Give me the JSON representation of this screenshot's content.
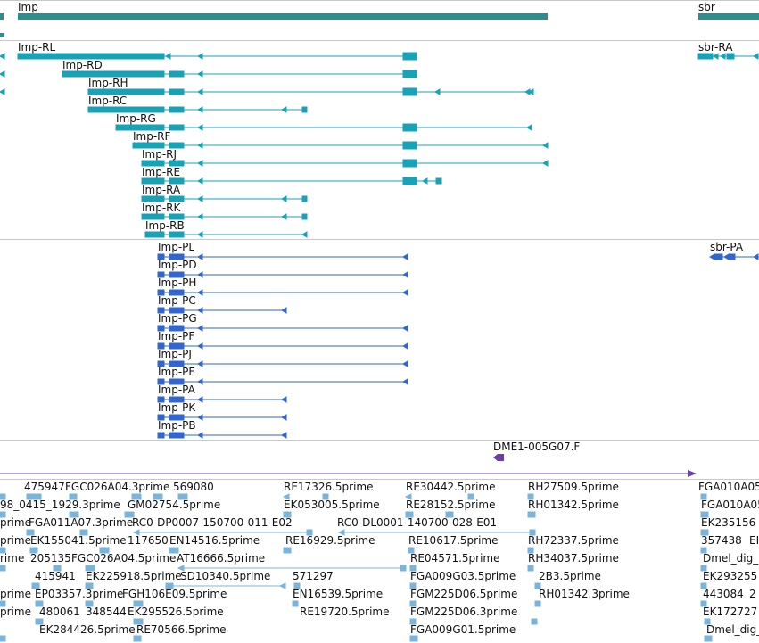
{
  "colors": {
    "gene": "#2a8f8f",
    "transcript": "#17a2b8",
    "protein": "#3366cc",
    "probe": "#6b3fa8",
    "clone": "#7bb3d9"
  },
  "gene_track": {
    "labels": [
      "Imp",
      "sbr"
    ]
  },
  "transcript_track": {
    "labels": [
      "Imp-RL",
      "Imp-RD",
      "Imp-RH",
      "Imp-RC",
      "Imp-RG",
      "Imp-RF",
      "Imp-RJ",
      "Imp-RE",
      "Imp-RA",
      "Imp-RK",
      "Imp-RB",
      "sbr-RA"
    ]
  },
  "protein_track": {
    "labels": [
      "Imp-PL",
      "Imp-PD",
      "Imp-PH",
      "Imp-PC",
      "Imp-PG",
      "Imp-PF",
      "Imp-PJ",
      "Imp-PE",
      "Imp-PA",
      "Imp-PK",
      "Imp-PB",
      "sbr-PA"
    ]
  },
  "probe_track": {
    "labels": [
      "DME1-005G07.F"
    ]
  },
  "clone_track": {
    "labels": [
      "475947",
      "FGC026A04.3prime",
      "569080",
      "RE17326.5prime",
      "RE30442.5prime",
      "RH27509.5prime",
      "FGA010A05",
      "98_0415_1929.3prime",
      "GM02754.5prime",
      "EK053005.5prime",
      "RE28152.5prime",
      "RH01342.5prime",
      "FGA010A05",
      "prime",
      "FGA011A07.3prime",
      "RC0-DP0007-150700-011-E02",
      "RC0-DL0001-140700-028-E01",
      "EK235156",
      "prime",
      "EK155041.5prime",
      "117650",
      "EN14516.5prime",
      "RE16929.5prime",
      "RE10617.5prime",
      "RH72337.5prime",
      "357438",
      "EI",
      "rime",
      "205135",
      "FGC026A04.5prime",
      "AT16666.5prime",
      "RE04571.5prime",
      "RH34037.5prime",
      "Dmel_dig_",
      "415941",
      "EK225918.5prime",
      "SD10340.5prime",
      "571297",
      "FGA009G03.5prime",
      "2B3.5prime",
      "EK293255",
      "prime",
      "EP03357.3prime",
      "FGH106E09.5prime",
      "EN16539.5prime",
      "FGM225D06.5prime",
      "RH01342.3prime",
      "443084",
      "2",
      "prime",
      "480061",
      "348544",
      "EK295526.5prime",
      "RE19720.5prime",
      "FGM225D06.3prime",
      "EK172727",
      "EK284426.5prime",
      "RE70566.5prime",
      "FGA009G01.5prime",
      "Dmel_dig_"
    ]
  }
}
